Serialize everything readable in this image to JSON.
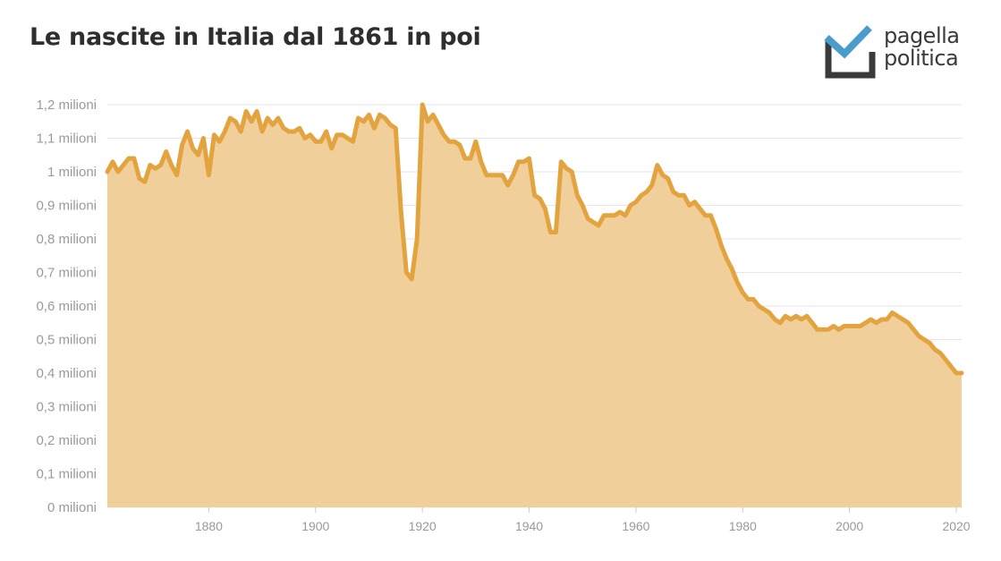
{
  "header": {
    "title": "Le nascite in Italia dal 1861 in poi"
  },
  "logo": {
    "line1": "pagella",
    "line2": "politica",
    "accent": "#4a9ccc",
    "dark": "#3a3a3a"
  },
  "colors": {
    "line": "#e3a33f",
    "area": "#f0cf9b",
    "grid": "#e6e6e6",
    "tick": "#9a9a9a"
  },
  "chart_data": {
    "type": "area",
    "title": "Le nascite in Italia dal 1861 in poi",
    "xlabel": "",
    "ylabel": "",
    "xlim": [
      1861,
      2021
    ],
    "ylim": [
      0,
      1.2
    ],
    "grid": true,
    "x_ticks": [
      "1880",
      "1900",
      "1920",
      "1940",
      "1960",
      "1980",
      "2000",
      "2020"
    ],
    "y_ticks": [
      "0 milioni",
      "0,1 milioni",
      "0,2 milioni",
      "0,3 milioni",
      "0,4 milioni",
      "0,5 milioni",
      "0,6 milioni",
      "0,7 milioni",
      "0,8 milioni",
      "0,9 milioni",
      "1 milioni",
      "1,1 milioni",
      "1,2 milioni"
    ],
    "series": [
      {
        "unit": "milioni",
        "points": [
          [
            1861,
            1.0
          ],
          [
            1862,
            1.03
          ],
          [
            1863,
            1.0
          ],
          [
            1864,
            1.02
          ],
          [
            1865,
            1.04
          ],
          [
            1866,
            1.04
          ],
          [
            1867,
            0.98
          ],
          [
            1868,
            0.97
          ],
          [
            1869,
            1.02
          ],
          [
            1870,
            1.01
          ],
          [
            1871,
            1.02
          ],
          [
            1872,
            1.06
          ],
          [
            1873,
            1.02
          ],
          [
            1874,
            0.99
          ],
          [
            1875,
            1.08
          ],
          [
            1876,
            1.12
          ],
          [
            1877,
            1.07
          ],
          [
            1878,
            1.05
          ],
          [
            1879,
            1.1
          ],
          [
            1880,
            0.99
          ],
          [
            1881,
            1.11
          ],
          [
            1882,
            1.09
          ],
          [
            1883,
            1.12
          ],
          [
            1884,
            1.16
          ],
          [
            1885,
            1.15
          ],
          [
            1886,
            1.12
          ],
          [
            1887,
            1.18
          ],
          [
            1888,
            1.15
          ],
          [
            1889,
            1.18
          ],
          [
            1890,
            1.12
          ],
          [
            1891,
            1.16
          ],
          [
            1892,
            1.14
          ],
          [
            1893,
            1.16
          ],
          [
            1894,
            1.13
          ],
          [
            1895,
            1.12
          ],
          [
            1896,
            1.12
          ],
          [
            1897,
            1.13
          ],
          [
            1898,
            1.1
          ],
          [
            1899,
            1.11
          ],
          [
            1900,
            1.09
          ],
          [
            1901,
            1.09
          ],
          [
            1902,
            1.12
          ],
          [
            1903,
            1.07
          ],
          [
            1904,
            1.11
          ],
          [
            1905,
            1.11
          ],
          [
            1906,
            1.1
          ],
          [
            1907,
            1.09
          ],
          [
            1908,
            1.16
          ],
          [
            1909,
            1.15
          ],
          [
            1910,
            1.17
          ],
          [
            1911,
            1.13
          ],
          [
            1912,
            1.17
          ],
          [
            1913,
            1.16
          ],
          [
            1914,
            1.14
          ],
          [
            1915,
            1.13
          ],
          [
            1916,
            0.88
          ],
          [
            1917,
            0.7
          ],
          [
            1918,
            0.68
          ],
          [
            1919,
            0.8
          ],
          [
            1920,
            1.2
          ],
          [
            1921,
            1.15
          ],
          [
            1922,
            1.17
          ],
          [
            1923,
            1.14
          ],
          [
            1924,
            1.11
          ],
          [
            1925,
            1.09
          ],
          [
            1926,
            1.09
          ],
          [
            1927,
            1.08
          ],
          [
            1928,
            1.04
          ],
          [
            1929,
            1.04
          ],
          [
            1930,
            1.09
          ],
          [
            1931,
            1.03
          ],
          [
            1932,
            0.99
          ],
          [
            1933,
            0.99
          ],
          [
            1934,
            0.99
          ],
          [
            1935,
            0.99
          ],
          [
            1936,
            0.96
          ],
          [
            1937,
            0.99
          ],
          [
            1938,
            1.03
          ],
          [
            1939,
            1.03
          ],
          [
            1940,
            1.04
          ],
          [
            1941,
            0.93
          ],
          [
            1942,
            0.92
          ],
          [
            1943,
            0.89
          ],
          [
            1944,
            0.82
          ],
          [
            1945,
            0.82
          ],
          [
            1946,
            1.03
          ],
          [
            1947,
            1.01
          ],
          [
            1948,
            1.0
          ],
          [
            1949,
            0.93
          ],
          [
            1950,
            0.9
          ],
          [
            1951,
            0.86
          ],
          [
            1952,
            0.85
          ],
          [
            1953,
            0.84
          ],
          [
            1954,
            0.87
          ],
          [
            1955,
            0.87
          ],
          [
            1956,
            0.87
          ],
          [
            1957,
            0.88
          ],
          [
            1958,
            0.87
          ],
          [
            1959,
            0.9
          ],
          [
            1960,
            0.91
          ],
          [
            1961,
            0.93
          ],
          [
            1962,
            0.94
          ],
          [
            1963,
            0.96
          ],
          [
            1964,
            1.02
          ],
          [
            1965,
            0.99
          ],
          [
            1966,
            0.98
          ],
          [
            1967,
            0.94
          ],
          [
            1968,
            0.93
          ],
          [
            1969,
            0.93
          ],
          [
            1970,
            0.9
          ],
          [
            1971,
            0.91
          ],
          [
            1972,
            0.89
          ],
          [
            1973,
            0.87
          ],
          [
            1974,
            0.87
          ],
          [
            1975,
            0.83
          ],
          [
            1976,
            0.78
          ],
          [
            1977,
            0.74
          ],
          [
            1978,
            0.71
          ],
          [
            1979,
            0.67
          ],
          [
            1980,
            0.64
          ],
          [
            1981,
            0.62
          ],
          [
            1982,
            0.62
          ],
          [
            1983,
            0.6
          ],
          [
            1984,
            0.59
          ],
          [
            1985,
            0.58
          ],
          [
            1986,
            0.56
          ],
          [
            1987,
            0.55
          ],
          [
            1988,
            0.57
          ],
          [
            1989,
            0.56
          ],
          [
            1990,
            0.57
          ],
          [
            1991,
            0.56
          ],
          [
            1992,
            0.57
          ],
          [
            1993,
            0.55
          ],
          [
            1994,
            0.53
          ],
          [
            1995,
            0.53
          ],
          [
            1996,
            0.53
          ],
          [
            1997,
            0.54
          ],
          [
            1998,
            0.53
          ],
          [
            1999,
            0.54
          ],
          [
            2000,
            0.54
          ],
          [
            2001,
            0.54
          ],
          [
            2002,
            0.54
          ],
          [
            2003,
            0.55
          ],
          [
            2004,
            0.56
          ],
          [
            2005,
            0.55
          ],
          [
            2006,
            0.56
          ],
          [
            2007,
            0.56
          ],
          [
            2008,
            0.58
          ],
          [
            2009,
            0.57
          ],
          [
            2010,
            0.56
          ],
          [
            2011,
            0.55
          ],
          [
            2012,
            0.53
          ],
          [
            2013,
            0.51
          ],
          [
            2014,
            0.5
          ],
          [
            2015,
            0.49
          ],
          [
            2016,
            0.47
          ],
          [
            2017,
            0.46
          ],
          [
            2018,
            0.44
          ],
          [
            2019,
            0.42
          ],
          [
            2020,
            0.4
          ],
          [
            2021,
            0.4
          ]
        ]
      }
    ]
  }
}
